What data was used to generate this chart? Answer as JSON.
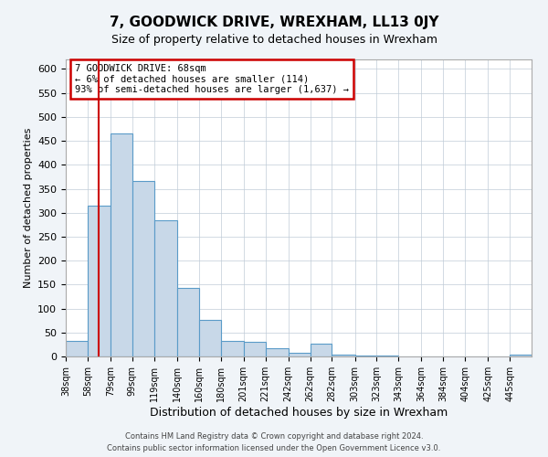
{
  "title": "7, GOODWICK DRIVE, WREXHAM, LL13 0JY",
  "subtitle": "Size of property relative to detached houses in Wrexham",
  "xlabel": "Distribution of detached houses by size in Wrexham",
  "ylabel": "Number of detached properties",
  "bin_labels": [
    "38sqm",
    "58sqm",
    "79sqm",
    "99sqm",
    "119sqm",
    "140sqm",
    "160sqm",
    "180sqm",
    "201sqm",
    "221sqm",
    "242sqm",
    "262sqm",
    "282sqm",
    "303sqm",
    "323sqm",
    "343sqm",
    "364sqm",
    "384sqm",
    "404sqm",
    "425sqm",
    "445sqm"
  ],
  "bar_values": [
    32,
    315,
    465,
    367,
    284,
    144,
    76,
    33,
    30,
    18,
    8,
    27,
    4,
    2,
    1,
    0,
    0,
    0,
    0,
    0,
    3
  ],
  "bar_color": "#c8d8e8",
  "bar_edge_color": "#5a9bc8",
  "vline_x": 68,
  "vline_color": "#cc0000",
  "ylim": [
    0,
    620
  ],
  "yticks": [
    0,
    50,
    100,
    150,
    200,
    250,
    300,
    350,
    400,
    450,
    500,
    550,
    600
  ],
  "annotation_title": "7 GOODWICK DRIVE: 68sqm",
  "annotation_line1": "← 6% of detached houses are smaller (114)",
  "annotation_line2": "93% of semi-detached houses are larger (1,637) →",
  "annotation_box_color": "#cc0000",
  "footer_line1": "Contains HM Land Registry data © Crown copyright and database right 2024.",
  "footer_line2": "Contains public sector information licensed under the Open Government Licence v3.0.",
  "bg_color": "#f0f4f8",
  "plot_bg_color": "#ffffff"
}
